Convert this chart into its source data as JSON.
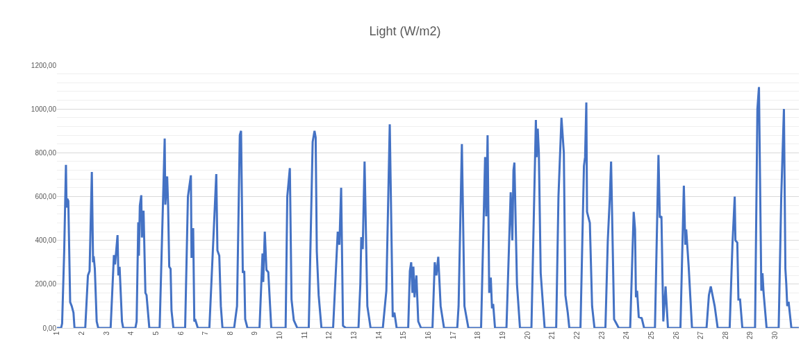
{
  "chart_data": {
    "type": "line",
    "title": "Light (W/m2)",
    "xlim": [
      1,
      30.958
    ],
    "xticks": [
      1,
      2,
      3,
      4,
      5,
      6,
      7,
      8,
      9,
      10,
      11,
      12,
      13,
      14,
      15,
      16,
      17,
      18,
      19,
      20,
      21,
      22,
      23,
      24,
      25,
      26,
      27,
      28,
      29,
      30
    ],
    "ylim": [
      0,
      1200
    ],
    "yticks": [
      {
        "value": 0,
        "label": "0,00"
      },
      {
        "value": 40,
        "label": null
      },
      {
        "value": 80,
        "label": null
      },
      {
        "value": 120,
        "label": null
      },
      {
        "value": 160,
        "label": null
      },
      {
        "value": 200,
        "label": "200,00"
      },
      {
        "value": 240,
        "label": null
      },
      {
        "value": 280,
        "label": null
      },
      {
        "value": 320,
        "label": null
      },
      {
        "value": 360,
        "label": null
      },
      {
        "value": 400,
        "label": "400,00"
      },
      {
        "value": 440,
        "label": null
      },
      {
        "value": 480,
        "label": null
      },
      {
        "value": 520,
        "label": null
      },
      {
        "value": 560,
        "label": null
      },
      {
        "value": 600,
        "label": "600,00"
      },
      {
        "value": 640,
        "label": null
      },
      {
        "value": 680,
        "label": null
      },
      {
        "value": 720,
        "label": null
      },
      {
        "value": 760,
        "label": null
      },
      {
        "value": 800,
        "label": "800,00"
      },
      {
        "value": 840,
        "label": null
      },
      {
        "value": 880,
        "label": null
      },
      {
        "value": 920,
        "label": null
      },
      {
        "value": 960,
        "label": null
      },
      {
        "value": 1000,
        "label": "1000,00"
      },
      {
        "value": 1040,
        "label": null
      },
      {
        "value": 1080,
        "label": null
      },
      {
        "value": 1120,
        "label": null
      },
      {
        "value": 1160,
        "label": null
      },
      {
        "value": 1200,
        "label": "1200,00"
      }
    ],
    "grid": "y",
    "marker": "none",
    "line_style": "solid",
    "series": [
      {
        "color": "#4472c4",
        "x": [
          1,
          1.167,
          1.208,
          1.292,
          1.363,
          1.388,
          1.417,
          1.458,
          1.533,
          1.596,
          1.667,
          1.708,
          2.142,
          2.25,
          2.317,
          2.408,
          2.458,
          2.483,
          2.529,
          2.604,
          2.667,
          3.167,
          3.3,
          3.346,
          3.446,
          3.479,
          3.529,
          3.625,
          3.675,
          4.167,
          4.217,
          4.283,
          4.308,
          4.346,
          4.404,
          4.429,
          4.496,
          4.571,
          4.617,
          4.729,
          5.146,
          5.35,
          5.375,
          5.45,
          5.488,
          5.533,
          5.588,
          5.625,
          5.7,
          6.175,
          6.288,
          6.408,
          6.433,
          6.5,
          6.546,
          6.592,
          6.688,
          7.154,
          7.433,
          7.479,
          7.554,
          7.617,
          7.683,
          8.154,
          8.271,
          8.383,
          8.433,
          8.504,
          8.563,
          8.6,
          8.692,
          9.179,
          9.3,
          9.329,
          9.392,
          9.458,
          9.533,
          9.654,
          10.233,
          10.3,
          10.404,
          10.471,
          10.563,
          10.704,
          11.167,
          11.325,
          11.4,
          11.446,
          11.492,
          11.567,
          11.679,
          12.15,
          12.338,
          12.404,
          12.475,
          12.55,
          12.663,
          13.175,
          13.25,
          13.288,
          13.346,
          13.421,
          13.533,
          13.663,
          14.158,
          14.3,
          14.438,
          14.558,
          14.625,
          14.717,
          15.183,
          15.25,
          15.304,
          15.354,
          15.392,
          15.438,
          15.513,
          15.588,
          15.7,
          16.163,
          16.254,
          16.321,
          16.396,
          16.492,
          16.629,
          17.163,
          17.217,
          17.35,
          17.454,
          17.613,
          18.125,
          18.288,
          18.333,
          18.388,
          18.454,
          18.517,
          18.567,
          18.613,
          18.688,
          19.15,
          19.321,
          19.388,
          19.433,
          19.471,
          19.575,
          19.696,
          20.158,
          20.338,
          20.367,
          20.413,
          20.458,
          20.533,
          20.692,
          21.158,
          21.25,
          21.371,
          21.467,
          21.529,
          21.625,
          21.688,
          22.138,
          22.279,
          22.325,
          22.375,
          22.404,
          22.517,
          22.608,
          22.704,
          23.146,
          23.242,
          23.325,
          23.375,
          23.496,
          23.592,
          23.683,
          24.146,
          24.288,
          24.342,
          24.379,
          24.425,
          24.492,
          24.613,
          24.708,
          25.146,
          25.288,
          25.342,
          25.408,
          25.483,
          25.575,
          25.671,
          26.175,
          26.313,
          26.371,
          26.408,
          26.508,
          26.642,
          27.229,
          27.325,
          27.4,
          27.558,
          27.679,
          28.163,
          28.275,
          28.367,
          28.396,
          28.471,
          28.517,
          28.583,
          28.675,
          29.188,
          29.283,
          29.346,
          29.442,
          29.488,
          29.533,
          29.654,
          30.142,
          30.246,
          30.354,
          30.413,
          30.45,
          30.488,
          30.542,
          30.654,
          30.958
        ],
        "values": [
          0,
          0,
          20,
          350,
          745,
          550,
          590,
          580,
          118,
          100,
          70,
          0,
          0,
          240,
          260,
          712,
          300,
          327,
          270,
          30,
          0,
          0,
          333,
          290,
          424,
          240,
          279,
          30,
          0,
          0,
          30,
          483,
          330,
          558,
          606,
          413,
          536,
          160,
          150,
          0,
          0,
          865,
          563,
          692,
          560,
          280,
          270,
          80,
          0,
          0,
          600,
          697,
          320,
          456,
          30,
          35,
          0,
          0,
          703,
          354,
          330,
          100,
          0,
          0,
          100,
          880,
          900,
          252,
          260,
          40,
          0,
          0,
          340,
          210,
          440,
          265,
          255,
          0,
          0,
          600,
          730,
          130,
          35,
          0,
          0,
          850,
          900,
          870,
          350,
          150,
          0,
          0,
          440,
          380,
          640,
          10,
          0,
          0,
          200,
          415,
          360,
          760,
          100,
          0,
          0,
          170,
          930,
          50,
          70,
          0,
          0,
          260,
          300,
          160,
          280,
          140,
          240,
          30,
          0,
          0,
          300,
          240,
          325,
          100,
          0,
          0,
          100,
          840,
          100,
          0,
          0,
          780,
          510,
          880,
          160,
          230,
          90,
          110,
          0,
          0,
          620,
          400,
          720,
          755,
          200,
          0,
          0,
          950,
          780,
          910,
          800,
          250,
          0,
          0,
          600,
          960,
          800,
          150,
          70,
          0,
          0,
          740,
          780,
          1030,
          530,
          480,
          100,
          0,
          0,
          400,
          600,
          760,
          40,
          20,
          0,
          0,
          530,
          450,
          140,
          170,
          50,
          45,
          0,
          0,
          790,
          504,
          510,
          30,
          190,
          0,
          0,
          650,
          380,
          450,
          280,
          0,
          0,
          150,
          190,
          100,
          0,
          0,
          380,
          600,
          400,
          390,
          130,
          130,
          0,
          0,
          1000,
          1100,
          170,
          250,
          160,
          0,
          0,
          600,
          1000,
          270,
          200,
          100,
          120,
          0,
          0
        ]
      }
    ]
  }
}
